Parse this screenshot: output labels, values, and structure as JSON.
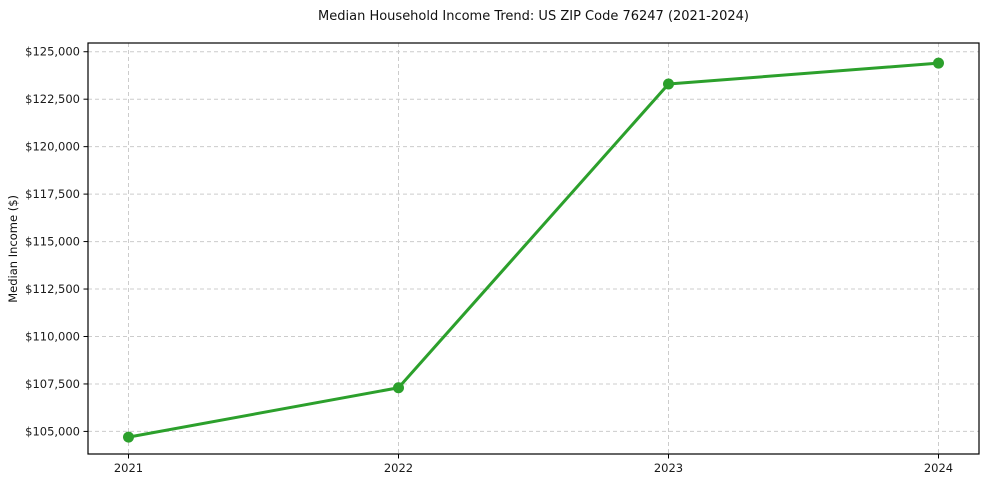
{
  "chart_data": {
    "type": "line",
    "title": "Median Household Income Trend: US ZIP Code 76247 (2021-2024)",
    "xlabel": "",
    "ylabel": "Median Income ($)",
    "x": [
      2021,
      2022,
      2023,
      2024
    ],
    "values": [
      104700,
      107300,
      123300,
      124400
    ],
    "xlim": [
      2020.85,
      2024.15
    ],
    "ylim": [
      103810,
      125460
    ],
    "xticks": [
      2021,
      2022,
      2023,
      2024
    ],
    "xtick_labels": [
      "2021",
      "2022",
      "2023",
      "2024"
    ],
    "yticks": [
      105000,
      107500,
      110000,
      112500,
      115000,
      117500,
      120000,
      122500,
      125000
    ],
    "ytick_labels": [
      "$105,000",
      "$107,500",
      "$110,000",
      "$112,500",
      "$115,000",
      "$117,500",
      "$120,000",
      "$122,500",
      "$125,000"
    ],
    "grid": true,
    "grid_style": "dashed",
    "legend_position": "none",
    "colors": {
      "line": "#2ca02c",
      "marker": "#2ca02c",
      "grid": "#cccccc",
      "spine": "#000000",
      "tick_text": "#1a1a1a",
      "background": "#ffffff"
    }
  }
}
